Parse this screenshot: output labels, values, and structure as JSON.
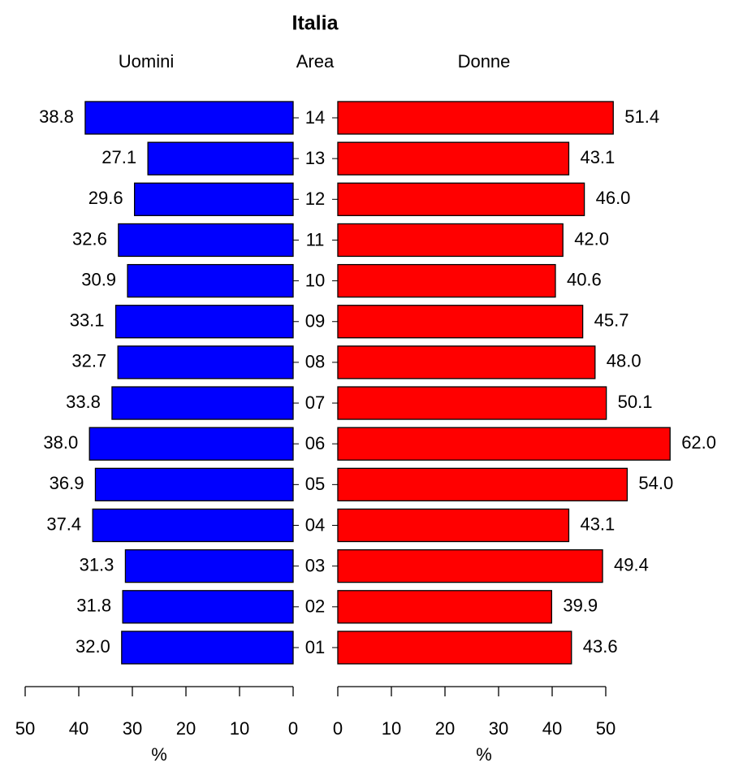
{
  "chart_data": {
    "type": "pyramid",
    "title": "Italia",
    "ylabel": "Area",
    "xlabel": "%",
    "categories": [
      "14",
      "13",
      "12",
      "11",
      "10",
      "09",
      "08",
      "07",
      "06",
      "05",
      "04",
      "03",
      "02",
      "01"
    ],
    "series": [
      {
        "name": "Uomini",
        "color": "#0000ff",
        "side": "left",
        "values": [
          38.8,
          27.1,
          29.6,
          32.6,
          30.9,
          33.1,
          32.7,
          33.8,
          38.0,
          36.9,
          37.4,
          31.3,
          31.8,
          32.0
        ],
        "value_labels": [
          "38.8",
          "27.1",
          "29.6",
          "32.6",
          "30.9",
          "33.1",
          "32.7",
          "33.8",
          "38.0",
          "36.9",
          "37.4",
          "31.3",
          "31.8",
          "32.0"
        ]
      },
      {
        "name": "Donne",
        "color": "#ff0000",
        "side": "right",
        "values": [
          51.4,
          43.1,
          46.0,
          42.0,
          40.6,
          45.7,
          48.0,
          50.1,
          62.0,
          54.0,
          43.1,
          49.4,
          39.9,
          43.6
        ],
        "value_labels": [
          "51.4",
          "43.1",
          "46.0",
          "42.0",
          "40.6",
          "45.7",
          "48.0",
          "50.1",
          "62.0",
          "54.0",
          "43.1",
          "49.4",
          "39.9",
          "43.6"
        ]
      }
    ],
    "xlim": [
      0,
      50
    ],
    "xticks": [
      0,
      10,
      20,
      30,
      40,
      50
    ]
  }
}
